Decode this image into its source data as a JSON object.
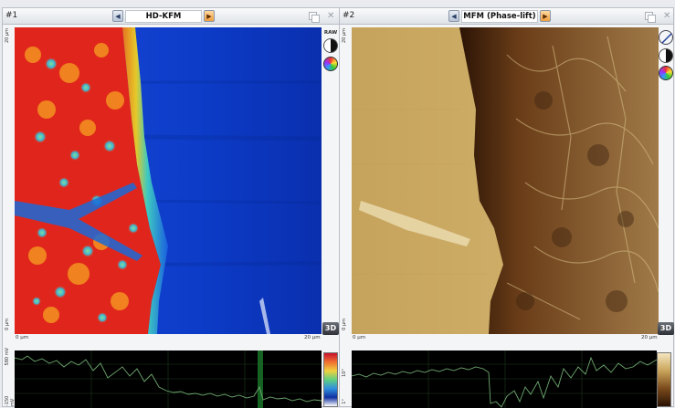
{
  "panels": [
    {
      "number": "#1",
      "title": "HD-KFM",
      "raw_label": "RAW",
      "view3d_label": "3D",
      "x_axis": {
        "start": "0 µm",
        "end": "20 µm"
      },
      "y_axis": {
        "top": "20 µm",
        "bottom": "0 µm"
      },
      "profile_axis": {
        "top": "580 mV",
        "bottom": "-150 mV"
      }
    },
    {
      "number": "#2",
      "title": "MFM (Phase-lift)",
      "view3d_label": "3D",
      "x_axis": {
        "start": "0 µm",
        "end": "20 µm"
      },
      "y_axis": {
        "top": "20 µm",
        "bottom": "0 µm"
      },
      "profile_axis": {
        "top": "10°",
        "bottom": "1°"
      }
    }
  ],
  "icons": {
    "prev": "left-arrow-icon",
    "next": "right-arrow-icon",
    "copy": "copy-icon",
    "close": "close-icon",
    "contrast": "contrast-icon",
    "palette": "palette-icon",
    "line": "line-profile-icon"
  },
  "colors": {
    "kfm_low": "#0a3dcc",
    "kfm_high": "#e8201a",
    "mfm_light": "#c9a45a",
    "mfm_dark": "#3a1c08"
  }
}
